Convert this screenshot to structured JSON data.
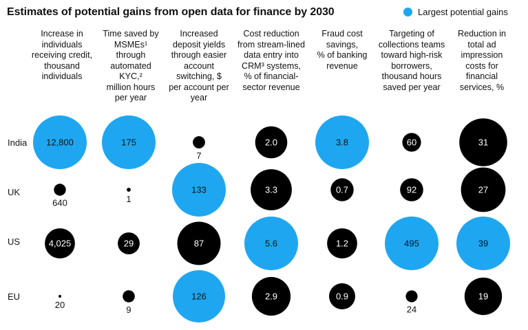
{
  "title": "Estimates of potential gains from open data for finance by 2030",
  "legend": {
    "label": "Largest potential gains",
    "highlight_color": "#1ea7f0",
    "default_color": "#000000"
  },
  "columns": [
    {
      "heading": "Increase in individuals receiving credit,",
      "unit": "thousand individuals",
      "sup": ""
    },
    {
      "heading": "Time saved by MSMEs¹ through automated KYC,²",
      "unit": "million hours per year",
      "sup": ""
    },
    {
      "heading": "Increased deposit yields through easier account switching, $",
      "unit": "per account per year",
      "sup": ""
    },
    {
      "heading": "Cost reduction from stream-lined data entry into CRM³ systems,",
      "unit": "% of financial-sector revenue",
      "sup": ""
    },
    {
      "heading": "Fraud cost savings,",
      "unit": "% of banking revenue",
      "sup": ""
    },
    {
      "heading": "Targeting of collections teams toward high-risk borrowers,",
      "unit": "thousand hours saved per year",
      "sup": ""
    },
    {
      "heading": "Reduction in total ad impression costs for financial services, %",
      "unit": "",
      "sup": ""
    }
  ],
  "chart_data": {
    "type": "bubble-matrix",
    "title": "Estimates of potential gains from open data for finance by 2030",
    "rows": [
      "India",
      "UK",
      "US",
      "EU"
    ],
    "series": [
      {
        "column": 0,
        "values": [
          {
            "row": "India",
            "value": 12800,
            "label": "12,800",
            "highlight": true
          },
          {
            "row": "UK",
            "value": 640,
            "label": "640",
            "highlight": false
          },
          {
            "row": "US",
            "value": 4025,
            "label": "4,025",
            "highlight": false
          },
          {
            "row": "EU",
            "value": 20,
            "label": "20",
            "highlight": false
          }
        ]
      },
      {
        "column": 1,
        "values": [
          {
            "row": "India",
            "value": 175,
            "label": "175",
            "highlight": true
          },
          {
            "row": "UK",
            "value": 1,
            "label": "1",
            "highlight": false
          },
          {
            "row": "US",
            "value": 29,
            "label": "29",
            "highlight": false
          },
          {
            "row": "EU",
            "value": 9,
            "label": "9",
            "highlight": false
          }
        ]
      },
      {
        "column": 2,
        "values": [
          {
            "row": "India",
            "value": 7,
            "label": "7",
            "highlight": false
          },
          {
            "row": "UK",
            "value": 133,
            "label": "133",
            "highlight": true
          },
          {
            "row": "US",
            "value": 87,
            "label": "87",
            "highlight": false
          },
          {
            "row": "EU",
            "value": 126,
            "label": "126",
            "highlight": true
          }
        ]
      },
      {
        "column": 3,
        "values": [
          {
            "row": "India",
            "value": 2.0,
            "label": "2.0",
            "highlight": false
          },
          {
            "row": "UK",
            "value": 3.3,
            "label": "3.3",
            "highlight": false
          },
          {
            "row": "US",
            "value": 5.6,
            "label": "5.6",
            "highlight": true
          },
          {
            "row": "EU",
            "value": 2.9,
            "label": "2.9",
            "highlight": false
          }
        ]
      },
      {
        "column": 4,
        "values": [
          {
            "row": "India",
            "value": 3.8,
            "label": "3.8",
            "highlight": true
          },
          {
            "row": "UK",
            "value": 0.7,
            "label": "0.7",
            "highlight": false
          },
          {
            "row": "US",
            "value": 1.2,
            "label": "1.2",
            "highlight": false
          },
          {
            "row": "EU",
            "value": 0.9,
            "label": "0.9",
            "highlight": false
          }
        ]
      },
      {
        "column": 5,
        "values": [
          {
            "row": "India",
            "value": 60,
            "label": "60",
            "highlight": false
          },
          {
            "row": "UK",
            "value": 92,
            "label": "92",
            "highlight": false
          },
          {
            "row": "US",
            "value": 495,
            "label": "495",
            "highlight": true
          },
          {
            "row": "EU",
            "value": 24,
            "label": "24",
            "highlight": false
          }
        ]
      },
      {
        "column": 6,
        "values": [
          {
            "row": "India",
            "value": 31,
            "label": "31",
            "highlight": false
          },
          {
            "row": "UK",
            "value": 27,
            "label": "27",
            "highlight": false
          },
          {
            "row": "US",
            "value": 39,
            "label": "39",
            "highlight": true
          },
          {
            "row": "EU",
            "value": 19,
            "label": "19",
            "highlight": false
          }
        ]
      }
    ]
  }
}
